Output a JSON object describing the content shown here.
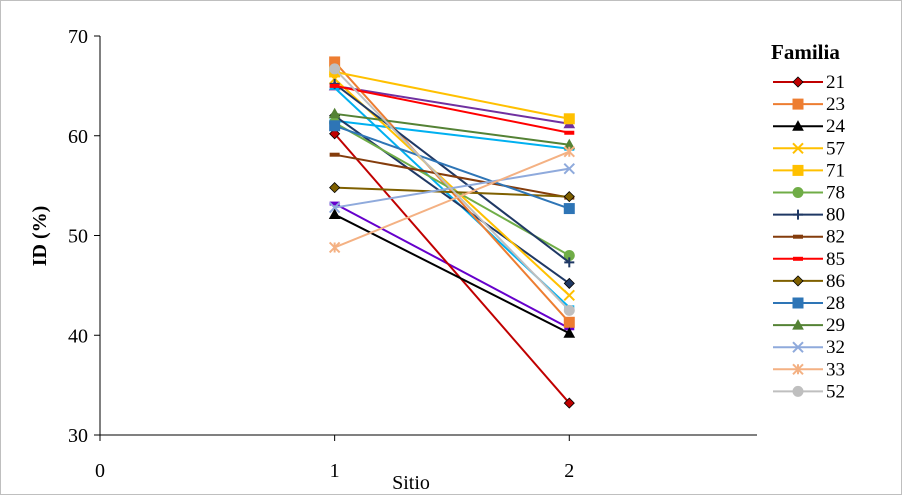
{
  "chart_data": {
    "type": "line",
    "xlabel": "Sitio",
    "ylabel": "ID (%)",
    "xlim": [
      0,
      2.8
    ],
    "ylim": [
      30,
      70
    ],
    "x_ticks": [
      0,
      1,
      2
    ],
    "y_ticks": [
      30,
      40,
      50,
      60,
      70
    ],
    "grid": false,
    "legend": {
      "title": "Familia",
      "position": "right"
    },
    "series": [
      {
        "name": "21",
        "color": "#C00000",
        "marker": "diamond",
        "x": [
          1,
          2
        ],
        "y": [
          60.2,
          33.2
        ]
      },
      {
        "name": "23",
        "color": "#ED7D31",
        "marker": "square",
        "x": [
          1,
          2
        ],
        "y": [
          67.4,
          41.3
        ]
      },
      {
        "name": "24",
        "color": "#000000",
        "marker": "triangle",
        "x": [
          1,
          2
        ],
        "y": [
          52.1,
          40.2
        ]
      },
      {
        "name": "57",
        "color": "#FFC000",
        "marker": "x",
        "x": [
          1,
          2
        ],
        "y": [
          65.7,
          44.0
        ]
      },
      {
        "name": "71",
        "color": "#FFC000",
        "marker": "square",
        "x": [
          1,
          2
        ],
        "y": [
          66.4,
          61.7
        ]
      },
      {
        "name": "78",
        "color": "#70AD47",
        "marker": "circle",
        "x": [
          1,
          2
        ],
        "y": [
          61.3,
          48.0
        ]
      },
      {
        "name": "80",
        "color": "#1F3864",
        "marker": "plus",
        "x": [
          1,
          2
        ],
        "y": [
          65.2,
          47.3
        ]
      },
      {
        "name": "82",
        "color": "#843C0C",
        "marker": "dash",
        "x": [
          1,
          2
        ],
        "y": [
          58.1,
          53.8
        ]
      },
      {
        "name": "85",
        "color": "#FF0000",
        "marker": "dash",
        "x": [
          1,
          2
        ],
        "y": [
          65.0,
          60.3
        ]
      },
      {
        "name": "86",
        "color": "#7F6000",
        "marker": "diamond",
        "x": [
          1,
          2
        ],
        "y": [
          54.8,
          53.9
        ]
      },
      {
        "name": "28",
        "color": "#2E75B6",
        "marker": "square",
        "x": [
          1,
          2
        ],
        "y": [
          61.0,
          52.7
        ]
      },
      {
        "name": "29",
        "color": "#548235",
        "marker": "triangle",
        "x": [
          1,
          2
        ],
        "y": [
          62.2,
          59.1
        ]
      },
      {
        "name": "32",
        "color": "#8FAADC",
        "marker": "x",
        "x": [
          1,
          2
        ],
        "y": [
          52.8,
          56.7
        ]
      },
      {
        "name": "33",
        "color": "#F4B183",
        "marker": "asterisk",
        "x": [
          1,
          2
        ],
        "y": [
          48.8,
          58.4
        ]
      },
      {
        "name": "52",
        "color": "#BFBFBF",
        "marker": "circle",
        "x": [
          1,
          2
        ],
        "y": [
          66.7,
          42.5
        ]
      }
    ],
    "extra_lines": [
      {
        "color": "#7030A0",
        "marker": "triangle",
        "x": [
          1,
          2
        ],
        "y": [
          65.0,
          61.2
        ]
      },
      {
        "color": "#6600CC",
        "marker": "dash",
        "x": [
          1,
          2
        ],
        "y": [
          53.2,
          40.7
        ]
      },
      {
        "color": "#00B0F0",
        "marker": "dash",
        "x": [
          1,
          2
        ],
        "y": [
          64.8,
          42.8
        ]
      },
      {
        "color": "#00B0F0",
        "marker": "dash",
        "x": [
          1,
          2
        ],
        "y": [
          61.5,
          58.7
        ]
      },
      {
        "color": "#1F3864",
        "marker": "diamond",
        "x": [
          1,
          2
        ],
        "y": [
          62.0,
          45.2
        ]
      }
    ]
  }
}
